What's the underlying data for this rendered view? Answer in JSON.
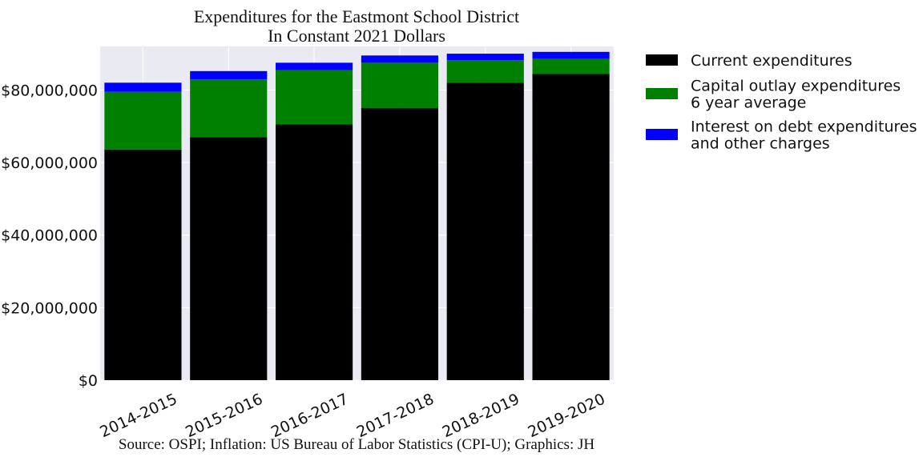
{
  "chart_data": {
    "type": "bar",
    "stacked": true,
    "title_lines": [
      "Expenditures for the Eastmont School District",
      "In Constant 2021 Dollars"
    ],
    "source": "Source: OSPI; Inflation: US Bureau of Labor Statistics (CPI-U); Graphics: JH",
    "categories": [
      "2014-2015",
      "2015-2016",
      "2016-2017",
      "2017-2018",
      "2018-2019",
      "2019-2020"
    ],
    "ylim": [
      0,
      92000000
    ],
    "y_ticks": [
      0,
      20000000,
      40000000,
      60000000,
      80000000
    ],
    "y_tick_labels": [
      "$0",
      "$20,000,000",
      "$40,000,000",
      "$60,000,000",
      "$80,000,000"
    ],
    "grid": true,
    "legend_position": "outside-right",
    "series": [
      {
        "name_lines": [
          "Current expenditures"
        ],
        "color": "#000000",
        "values": [
          63600000,
          67000000,
          70500000,
          75000000,
          82000000,
          84400000
        ]
      },
      {
        "name_lines": [
          "Capital outlay expenditures",
          "6 year average"
        ],
        "color": "#008000",
        "values": [
          15900000,
          15900000,
          15000000,
          12500000,
          6200000,
          4200000
        ]
      },
      {
        "name_lines": [
          "Interest on debt expenditures",
          "and other charges"
        ],
        "color": "#0000ff",
        "values": [
          2500000,
          2300000,
          2000000,
          2000000,
          1800000,
          1900000
        ]
      }
    ],
    "plot_background": "#eaeaf2",
    "grid_color": "#ffffff"
  }
}
